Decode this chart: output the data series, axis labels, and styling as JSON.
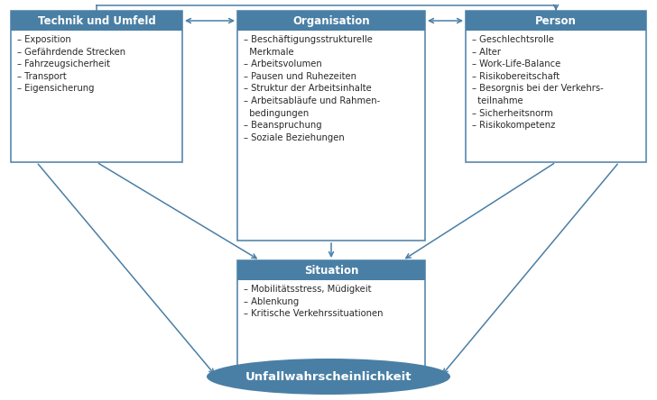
{
  "header_color": "#4a7fa5",
  "header_text_color": "#ffffff",
  "border_color": "#4a7fa5",
  "body_bg": "#ffffff",
  "arrow_color": "#4a7fa5",
  "ellipse_color": "#4a7fa5",
  "ellipse_text_color": "#ffffff",
  "body_text_color": "#2a2a2a",
  "box_technik": {
    "title": "Technik und Umfeld",
    "items": [
      "– Exposition",
      "– Gefährdende Strecken",
      "– Fahrzeugsicherheit",
      "– Transport",
      "– Eigensicherung"
    ]
  },
  "box_organisation": {
    "title": "Organisation",
    "items": [
      "– Beschäftigungsstrukturelle\n  Merkmale",
      "– Arbeitsvolumen",
      "– Pausen und Ruhezeiten",
      "– Struktur der Arbeitsinhalte",
      "– Arbeitsabläufe und Rahmen-\n  bedingungen",
      "– Beanspruchung",
      "– Soziale Beziehungen"
    ]
  },
  "box_person": {
    "title": "Person",
    "items": [
      "– Geschlechtsrolle",
      "– Alter",
      "– Work-Life-Balance",
      "– Risikobereitschaft",
      "– Besorgnis bei der Verkehrs-\n  teilnahme",
      "– Sicherheitsnorm",
      "– Risikokompetenz"
    ]
  },
  "box_situation": {
    "title": "Situation",
    "items": [
      "– Mobilitätsstress, Müdigkeit",
      "– Ablenkung",
      "– Kritische Verkehrssituationen"
    ]
  },
  "ellipse_label": "Unfallwahrscheinlichkeit",
  "fig_w": 7.28,
  "fig_h": 4.44,
  "dpi": 100
}
